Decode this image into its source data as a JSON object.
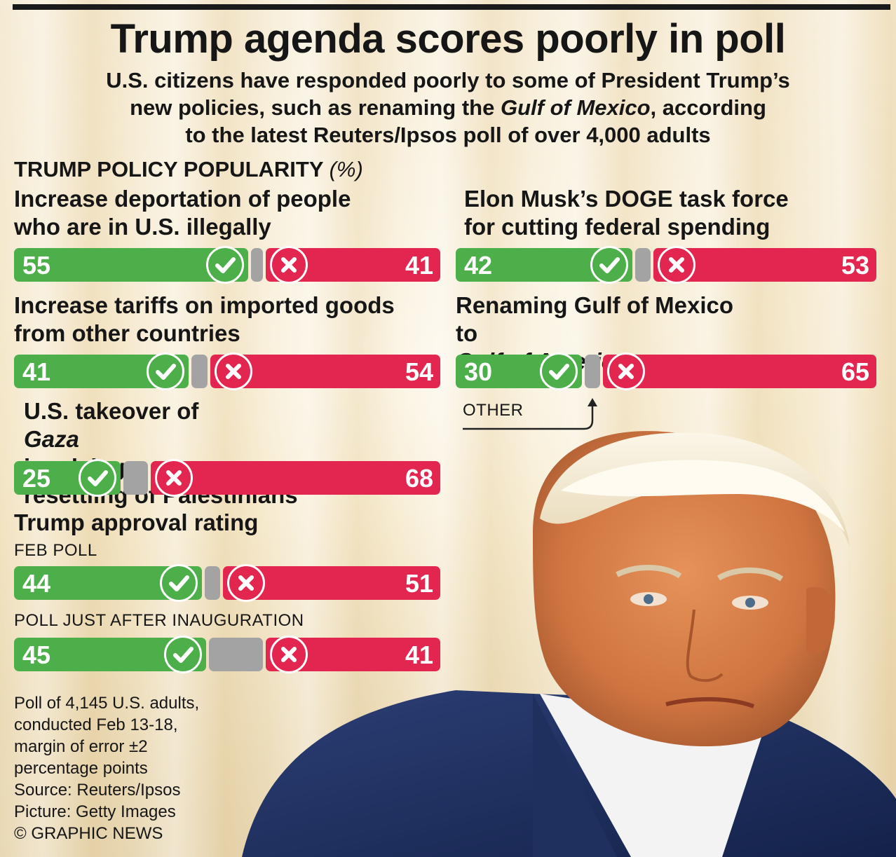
{
  "title": "Trump agenda scores poorly in poll",
  "subtitle": {
    "line1": "U.S. citizens have responded poorly to some of President Trump’s",
    "line2_pre": "new policies, such as renaming the ",
    "line2_em": "Gulf of Mexico",
    "line2_post": ", according",
    "line3": "to the latest Reuters/Ipsos poll of over 4,000 adults"
  },
  "section_heading": "TRUMP POLICY POPULARITY",
  "section_unit": "(%)",
  "labels": {
    "deportation_1": "Increase deportation of people",
    "deportation_2": "who are in U.S. illegally",
    "doge_1": "Elon Musk’s DOGE task force",
    "doge_2": "for cutting federal spending",
    "tariffs_1": "Increase tariffs on imported goods",
    "tariffs_2": "from other countries",
    "gulf_1": "Renaming Gulf of Mexico",
    "gulf_2_pre": "to ",
    "gulf_2_em": "Gulf of America",
    "gaza_1_pre": "U.S. takeover of ",
    "gaza_1_em": "Gaza",
    "gaza_1_post": " involving",
    "gaza_2": "resettling of Palestinians",
    "approval": "Trump approval rating",
    "feb_poll": "FEB POLL",
    "inaug_poll": "POLL JUST AFTER INAUGURATION",
    "other": "OTHER"
  },
  "footnote": {
    "l1": "Poll of 4,145 U.S. adults,",
    "l2": "conducted Feb 13-18,",
    "l3": "margin of error ±2",
    "l4": "percentage points",
    "l5": "Source: Reuters/Ipsos",
    "l6": "Picture: Getty Images",
    "l7": "© GRAPHIC NEWS"
  },
  "colors": {
    "support": "#4daf4a",
    "oppose": "#e3264f",
    "other": "#a3a3a3"
  },
  "icons": {
    "support": "check-icon",
    "oppose": "cross-icon",
    "other_pointer": "arrow-up-icon"
  },
  "chart_data": {
    "type": "bar",
    "orientation": "horizontal-stacked",
    "title": "TRUMP POLICY POPULARITY (%)",
    "unit": "%",
    "categories": [
      "Increase deportation of people who are in U.S. illegally",
      "Elon Musk’s DOGE task force for cutting federal spending",
      "Increase tariffs on imported goods from other countries",
      "Renaming Gulf of Mexico to Gulf of America",
      "U.S. takeover of Gaza involving resettling of Palestinians",
      "Trump approval rating — FEB POLL",
      "Trump approval rating — POLL JUST AFTER INAUGURATION"
    ],
    "series": [
      {
        "name": "Support",
        "values": [
          55,
          42,
          41,
          30,
          25,
          44,
          45
        ]
      },
      {
        "name": "Other",
        "values": [
          4,
          5,
          5,
          5,
          7,
          5,
          14
        ]
      },
      {
        "name": "Oppose",
        "values": [
          41,
          53,
          54,
          65,
          68,
          51,
          41
        ]
      }
    ]
  },
  "bars": {
    "deportation": {
      "yes": 55,
      "no": 41,
      "yes_text": "55",
      "no_text": "41"
    },
    "doge": {
      "yes": 42,
      "no": 53,
      "yes_text": "42",
      "no_text": "53"
    },
    "tariffs": {
      "yes": 41,
      "no": 54,
      "yes_text": "41",
      "no_text": "54"
    },
    "gulf": {
      "yes": 30,
      "no": 65,
      "yes_text": "30",
      "no_text": "65"
    },
    "gaza": {
      "yes": 25,
      "no": 68,
      "yes_text": "25",
      "no_text": "68"
    },
    "approval_feb": {
      "yes": 44,
      "no": 51,
      "yes_text": "44",
      "no_text": "51"
    },
    "approval_inaug": {
      "yes": 45,
      "no": 41,
      "yes_text": "45",
      "no_text": "41"
    }
  }
}
